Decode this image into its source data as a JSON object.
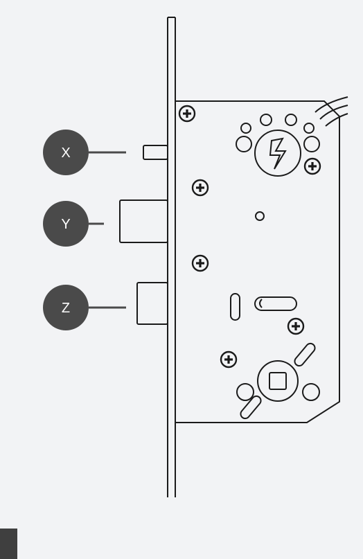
{
  "callouts": [
    {
      "id": "x",
      "label": "X"
    },
    {
      "id": "y",
      "label": "Y"
    },
    {
      "id": "z",
      "label": "Z"
    }
  ],
  "colors": {
    "background": "#f2f3f5",
    "stroke": "#1a1a1a",
    "callout_fill": "#4a4a4a",
    "callout_text": "#ffffff",
    "corner_block": "#3f3f3f"
  }
}
